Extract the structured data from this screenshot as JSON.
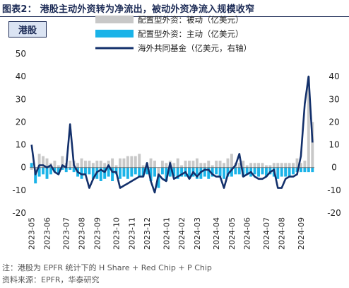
{
  "figure": {
    "title": "图表2：  港股主动外资转为净流出，被动外资净流入规模收窄",
    "tag": "港股",
    "note": "注：港股为 EPFR 统计下的 H Share + Red Chip + P Chip",
    "source": "资料来源：EPFR，华泰研究"
  },
  "chart_data": {
    "type": "bar",
    "title": "",
    "left_axis": {
      "ylim": [
        -20,
        50
      ],
      "ticks": [
        "50",
        "40",
        "30",
        "20",
        "10",
        "0",
        "-10",
        "-20"
      ]
    },
    "right_axis": {
      "ylim": [
        -20,
        50
      ],
      "ticks": [
        "40",
        "30",
        "20",
        "10",
        "0",
        "-10",
        "-20"
      ]
    },
    "x_tick_labels": [
      "2023-05",
      "2023-06",
      "2023-07",
      "2023-08",
      "2023-09",
      "2023-10",
      "2023-11",
      "2023-12",
      "2024-01",
      "2024-02",
      "2024-03",
      "2024-04",
      "2024-05",
      "2024-06",
      "2024-07",
      "2024-08",
      "2024-09"
    ],
    "x_tick_index": [
      0,
      4,
      9,
      13,
      17,
      22,
      26,
      30,
      35,
      39,
      43,
      48,
      52,
      56,
      61,
      65,
      70
    ],
    "series": [
      {
        "name": "配置型外资：被动（亿美元）",
        "kind": "bar",
        "color": "#c8c8c8",
        "values": [
          -1,
          -2,
          6,
          5,
          4,
          2,
          3,
          1,
          5,
          2,
          3,
          3,
          2,
          4,
          3,
          3,
          2,
          3,
          3,
          2,
          3,
          4,
          1,
          4,
          4,
          5,
          5,
          5,
          6,
          1,
          2,
          4,
          3,
          -4,
          3,
          2,
          3,
          2,
          4,
          1,
          3,
          3,
          3,
          4,
          2,
          2,
          3,
          1,
          3,
          3,
          2,
          4,
          6,
          2,
          2,
          3,
          1,
          2,
          2,
          2,
          2,
          1,
          1,
          2,
          2,
          2,
          2,
          2,
          2,
          4,
          2,
          3,
          40,
          20
        ]
      },
      {
        "name": "配置型外资：主动（亿美元）",
        "kind": "bar",
        "color": "#1ab3e8",
        "values": [
          2,
          -5,
          -4,
          -3,
          -5,
          -3,
          -2,
          -3,
          -1,
          -2,
          -1,
          -2,
          -4,
          -5,
          -3,
          -3,
          -5,
          -5,
          -6,
          -5,
          -4,
          -6,
          -3,
          -5,
          -4,
          -5,
          -4,
          -3,
          -4,
          -4,
          -3,
          -6,
          -4,
          -5,
          -3,
          -6,
          -4,
          -4,
          -5,
          -4,
          -4,
          -5,
          -4,
          -5,
          -5,
          -4,
          -5,
          -4,
          -3,
          -4,
          -5,
          -4,
          -4,
          -3,
          -3,
          -4,
          -3,
          -4,
          -3,
          -4,
          -3,
          -4,
          -3,
          -4,
          -5,
          -4,
          -4,
          -4,
          -3,
          -2,
          -2,
          -2,
          -2,
          -2
        ]
      },
      {
        "name": "海外共同基金（亿美元，右轴）",
        "kind": "line",
        "color": "#13306b",
        "values": [
          10,
          -3,
          1,
          1,
          0,
          1,
          -2,
          -3,
          1,
          0,
          19,
          1,
          -2,
          -3,
          -3,
          -9,
          -5,
          -2,
          -1,
          -2,
          1,
          -2,
          -2,
          -9,
          -8,
          -7,
          -6,
          -5,
          -4,
          -4,
          2,
          -6,
          -11,
          -3,
          -5,
          -6,
          2,
          -5,
          -4,
          -3,
          -2,
          -5,
          -2,
          -4,
          -2,
          -1,
          -1,
          -3,
          -4,
          -4,
          -9,
          -3,
          -1,
          1,
          6,
          -4,
          -3,
          -2,
          -4,
          -5,
          -5,
          -4,
          -2,
          -1,
          -9,
          -9,
          -5,
          -4,
          -4,
          -3,
          5,
          28,
          40,
          11
        ]
      }
    ],
    "legend_position": "top-center",
    "grid": false
  }
}
